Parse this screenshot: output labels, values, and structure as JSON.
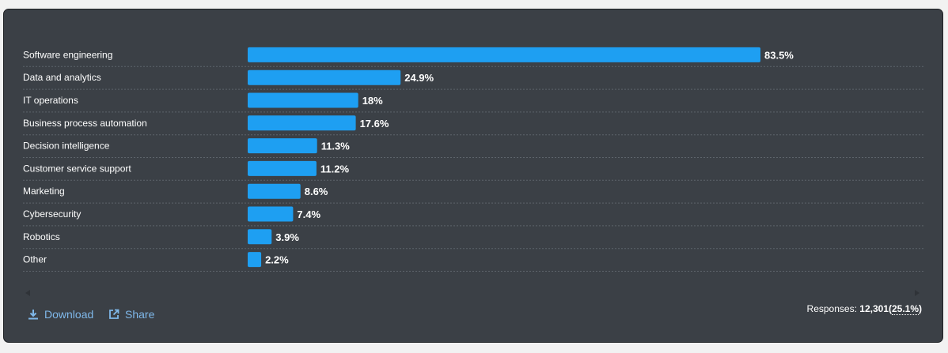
{
  "chart_data": {
    "type": "bar",
    "orientation": "horizontal",
    "categories": [
      "Software engineering",
      "Data and analytics",
      "IT operations",
      "Business process automation",
      "Decision intelligence",
      "Customer service support",
      "Marketing",
      "Cybersecurity",
      "Robotics",
      "Other"
    ],
    "values": [
      83.5,
      24.9,
      18,
      17.6,
      11.3,
      11.2,
      8.6,
      7.4,
      3.9,
      2.2
    ],
    "value_labels": [
      "83.5%",
      "24.9%",
      "18%",
      "17.6%",
      "11.3%",
      "11.2%",
      "8.6%",
      "7.4%",
      "3.9%",
      "2.2%"
    ],
    "xlim": [
      0,
      100
    ],
    "bar_color": "#1e9ff2",
    "grid": false
  },
  "actions": {
    "download_label": "Download",
    "share_label": "Share"
  },
  "footer": {
    "responses_label": "Responses:",
    "responses_count": "12,301",
    "responses_paren_open": "(",
    "responses_percent": "25.1%",
    "responses_paren_close": ")"
  },
  "colors": {
    "panel_background": "#3b4046",
    "accent": "#1e9ff2",
    "link": "#7fb8ea"
  }
}
